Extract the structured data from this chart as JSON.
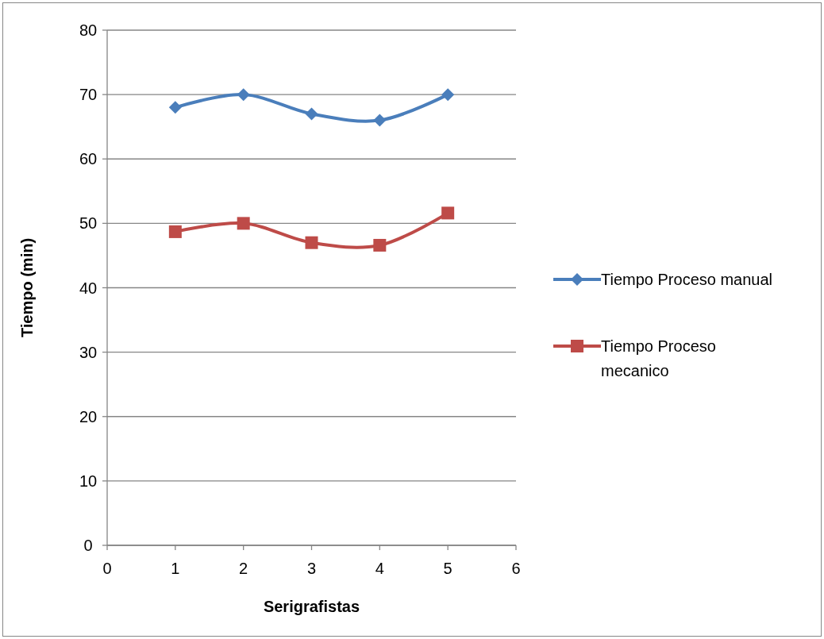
{
  "chart_data": {
    "type": "line",
    "xlabel": "Serigrafistas",
    "ylabel": "Tiempo (min)",
    "x": [
      1,
      2,
      3,
      4,
      5
    ],
    "xlim": [
      0,
      6
    ],
    "xticks": [
      0,
      1,
      2,
      3,
      4,
      5,
      6
    ],
    "ylim": [
      0,
      80
    ],
    "yticks": [
      0,
      10,
      20,
      30,
      40,
      50,
      60,
      70,
      80
    ],
    "grid": "y",
    "legend": "right",
    "series": [
      {
        "name": "Tiempo Proceso manual",
        "color": "#4a7ebb",
        "marker": "diamond",
        "values": [
          68,
          70,
          67,
          66,
          70
        ]
      },
      {
        "name": "Tiempo Proceso mecanico",
        "color": "#be4b48",
        "marker": "square",
        "values": [
          48.7,
          50,
          47,
          46.6,
          51.6
        ]
      }
    ]
  }
}
